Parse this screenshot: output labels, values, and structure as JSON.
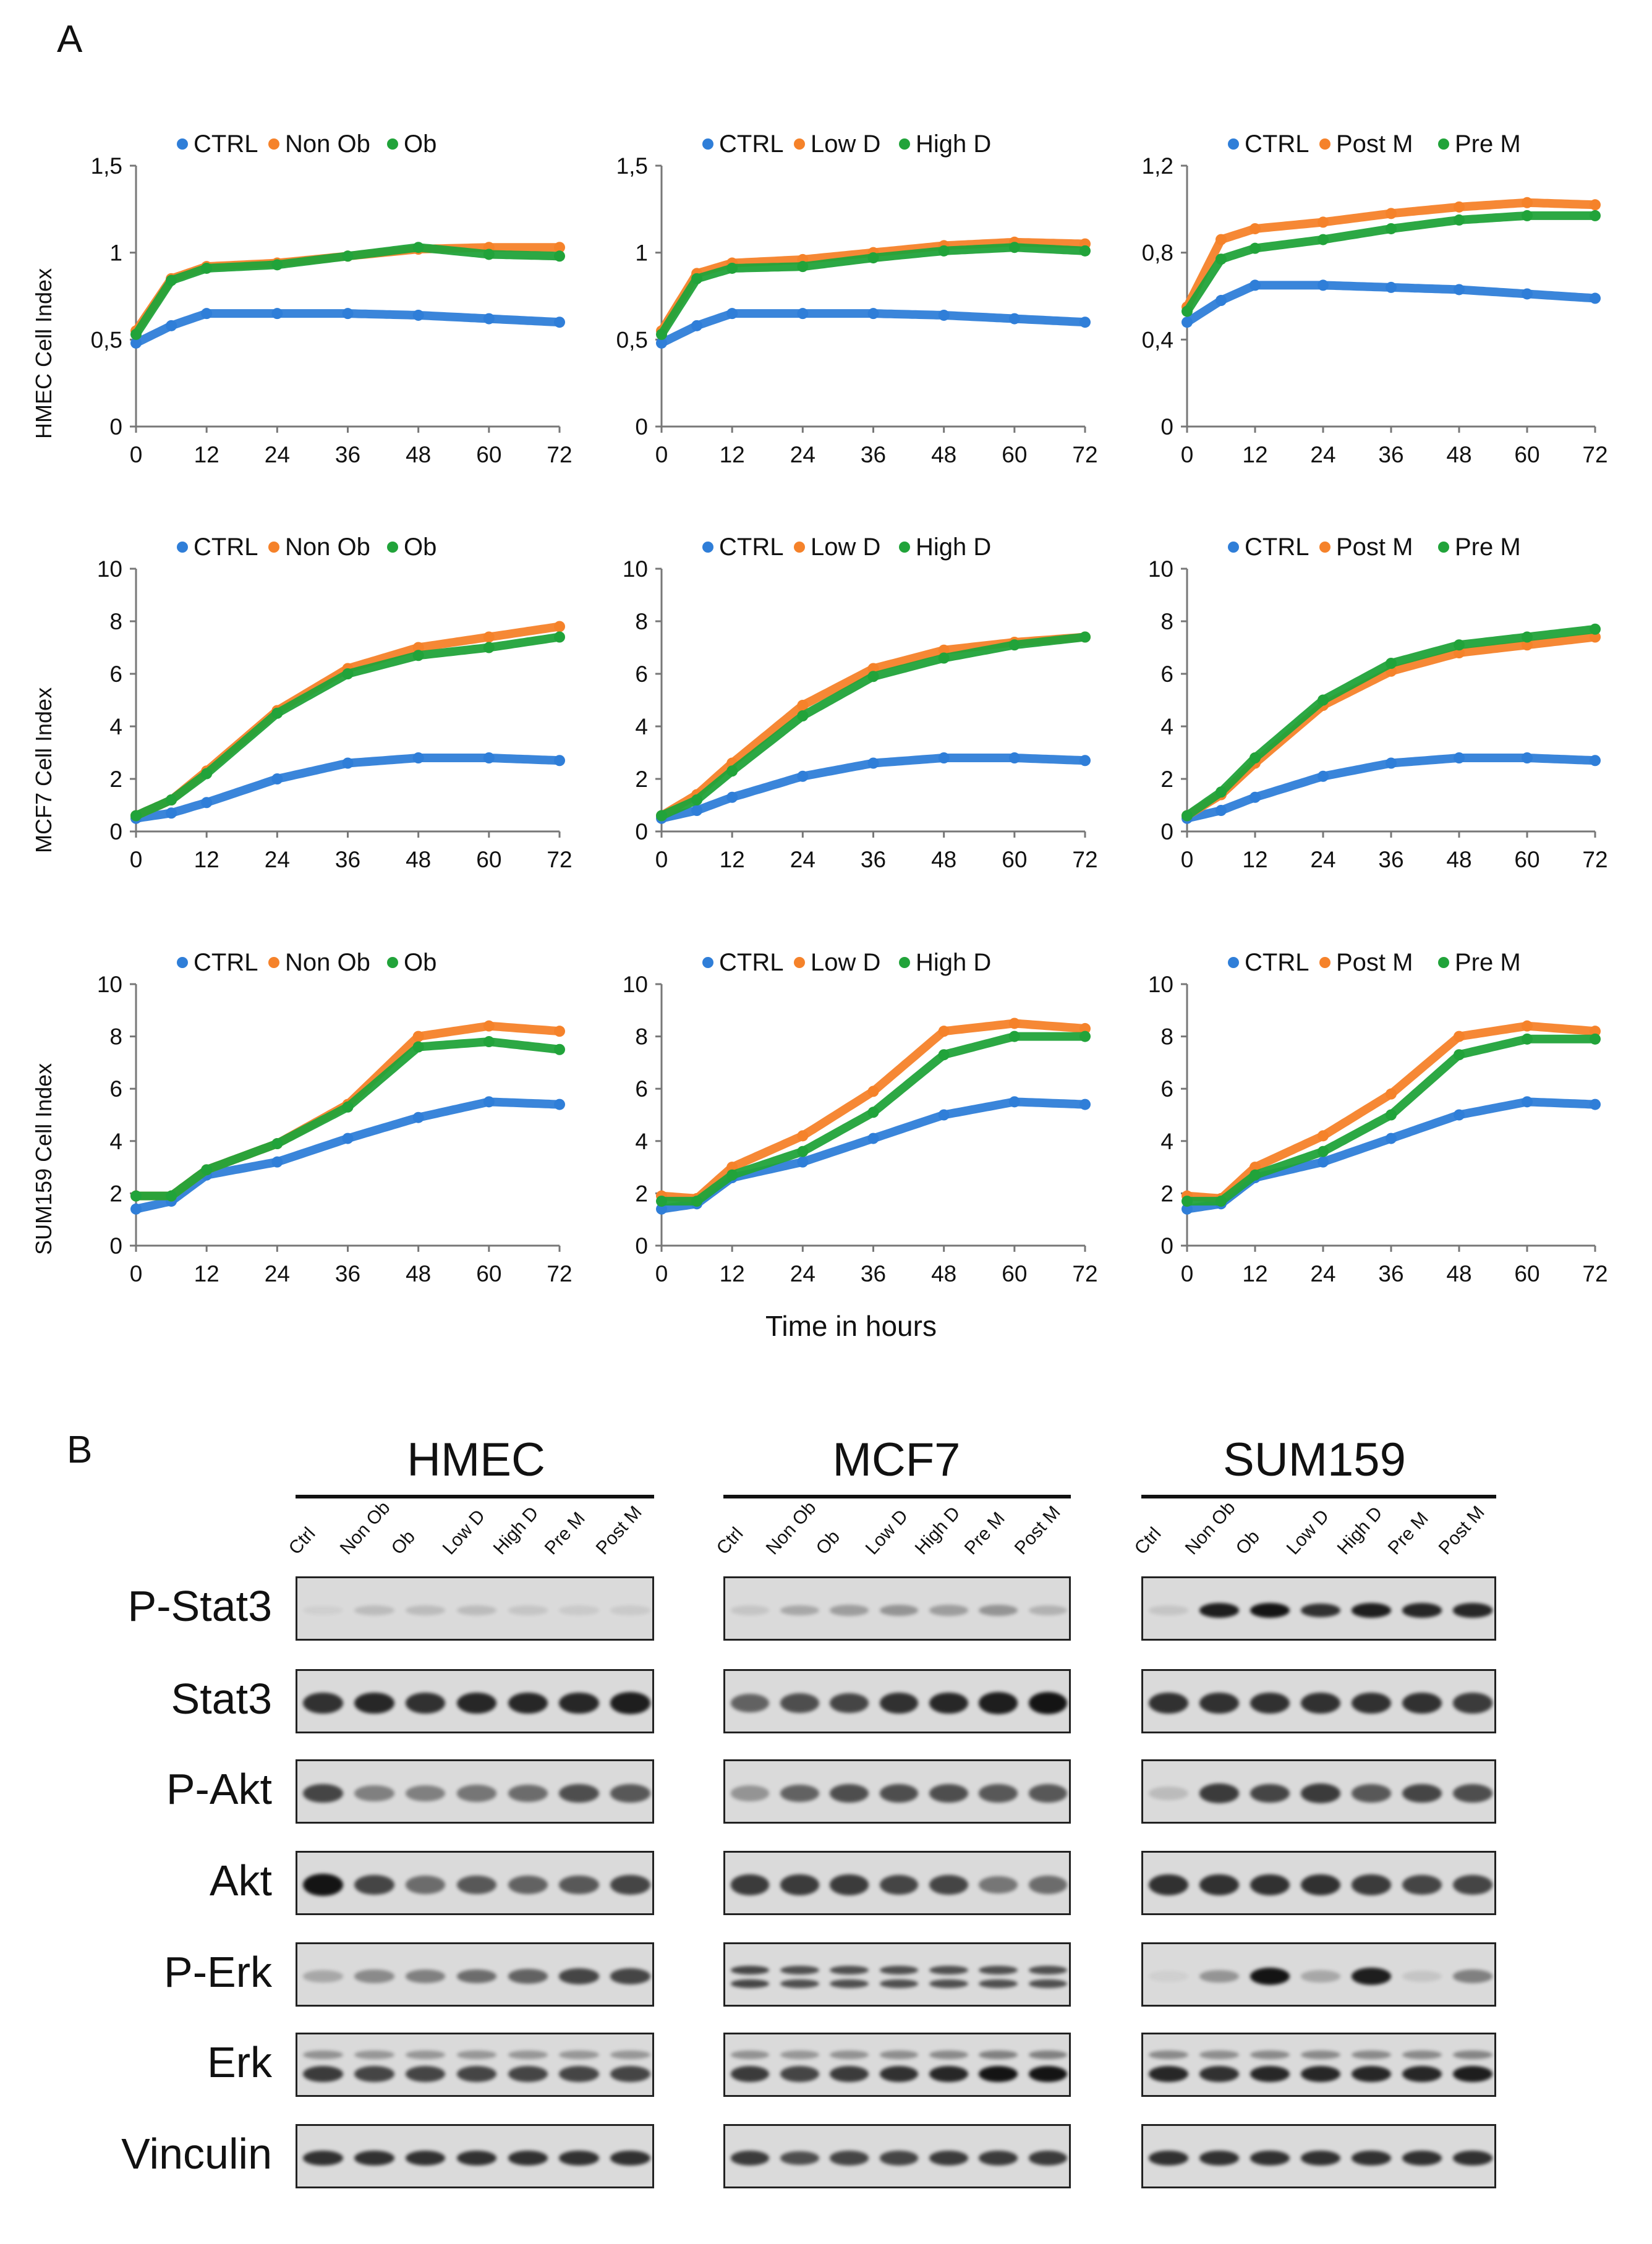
{
  "panel_labels": {
    "a": "A",
    "b": "B"
  },
  "colors": {
    "CTRL": "#2f7ed8",
    "orange": "#f5822a",
    "green": "#21a33a",
    "grey": "#8c8c8c"
  },
  "panel_a": {
    "x_axis_title": "Time in hours",
    "row_labels": [
      "HMEC  Cell Index",
      "MCF7 Cell Index",
      "SUM159  Cell Index"
    ]
  },
  "chart_data": [
    {
      "type": "scatter",
      "row": "HMEC",
      "title": "",
      "xlabel": "",
      "ylabel": "HMEC  Cell Index",
      "x": [
        0,
        6,
        12,
        24,
        36,
        48,
        60,
        72
      ],
      "xticks": [
        "0",
        "12",
        "24",
        "36",
        "48",
        "60",
        "72"
      ],
      "ylim": [
        0,
        1.5
      ],
      "yticks": [
        "0",
        "0,5",
        "1",
        "1,5"
      ],
      "series": [
        {
          "name": "CTRL",
          "color": "#2f7ed8",
          "values": [
            0.48,
            0.58,
            0.65,
            0.65,
            0.65,
            0.64,
            0.62,
            0.6
          ]
        },
        {
          "name": "Non Ob",
          "color": "#f5822a",
          "values": [
            0.55,
            0.85,
            0.92,
            0.94,
            0.98,
            1.02,
            1.03,
            1.03
          ]
        },
        {
          "name": "Ob",
          "color": "#21a33a",
          "values": [
            0.53,
            0.84,
            0.91,
            0.93,
            0.98,
            1.03,
            0.99,
            0.98
          ]
        }
      ]
    },
    {
      "type": "scatter",
      "row": "HMEC",
      "title": "",
      "xlabel": "",
      "ylabel": "",
      "x": [
        0,
        6,
        12,
        24,
        36,
        48,
        60,
        72
      ],
      "xticks": [
        "0",
        "12",
        "24",
        "36",
        "48",
        "60",
        "72"
      ],
      "ylim": [
        0,
        1.5
      ],
      "yticks": [
        "0",
        "0,5",
        "1",
        "1,5"
      ],
      "series": [
        {
          "name": "CTRL",
          "color": "#2f7ed8",
          "values": [
            0.48,
            0.58,
            0.65,
            0.65,
            0.65,
            0.64,
            0.62,
            0.6
          ]
        },
        {
          "name": "Low D",
          "color": "#f5822a",
          "values": [
            0.55,
            0.88,
            0.94,
            0.96,
            1.0,
            1.04,
            1.06,
            1.05
          ]
        },
        {
          "name": "High D",
          "color": "#21a33a",
          "values": [
            0.53,
            0.85,
            0.91,
            0.92,
            0.97,
            1.01,
            1.03,
            1.01
          ]
        }
      ]
    },
    {
      "type": "scatter",
      "row": "HMEC",
      "title": "",
      "xlabel": "",
      "ylabel": "",
      "x": [
        0,
        6,
        12,
        24,
        36,
        48,
        60,
        72
      ],
      "xticks": [
        "0",
        "12",
        "24",
        "36",
        "48",
        "60",
        "72"
      ],
      "ylim": [
        0,
        1.2
      ],
      "yticks": [
        "0",
        "0,4",
        "0,8",
        "1,2"
      ],
      "series": [
        {
          "name": "CTRL",
          "color": "#2f7ed8",
          "values": [
            0.48,
            0.58,
            0.65,
            0.65,
            0.64,
            0.63,
            0.61,
            0.59
          ]
        },
        {
          "name": "Post M",
          "color": "#f5822a",
          "values": [
            0.55,
            0.86,
            0.91,
            0.94,
            0.98,
            1.01,
            1.03,
            1.02
          ]
        },
        {
          "name": "Pre M",
          "color": "#21a33a",
          "values": [
            0.53,
            0.77,
            0.82,
            0.86,
            0.91,
            0.95,
            0.97,
            0.97
          ]
        }
      ]
    },
    {
      "type": "scatter",
      "row": "MCF7",
      "title": "",
      "xlabel": "",
      "ylabel": "MCF7 Cell Index",
      "x": [
        0,
        6,
        12,
        24,
        36,
        48,
        60,
        72
      ],
      "xticks": [
        "0",
        "12",
        "24",
        "36",
        "48",
        "60",
        "72"
      ],
      "ylim": [
        0,
        10
      ],
      "yticks": [
        "0",
        "2",
        "4",
        "6",
        "8",
        "10"
      ],
      "series": [
        {
          "name": "CTRL",
          "color": "#2f7ed8",
          "values": [
            0.5,
            0.7,
            1.1,
            2.0,
            2.6,
            2.8,
            2.8,
            2.7
          ]
        },
        {
          "name": "Non Ob",
          "color": "#f5822a",
          "values": [
            0.6,
            1.2,
            2.3,
            4.6,
            6.2,
            7.0,
            7.4,
            7.8
          ]
        },
        {
          "name": "Ob",
          "color": "#21a33a",
          "values": [
            0.6,
            1.2,
            2.2,
            4.5,
            6.0,
            6.7,
            7.0,
            7.4
          ]
        }
      ]
    },
    {
      "type": "scatter",
      "row": "MCF7",
      "title": "",
      "xlabel": "",
      "ylabel": "",
      "x": [
        0,
        6,
        12,
        24,
        36,
        48,
        60,
        72
      ],
      "xticks": [
        "0",
        "12",
        "24",
        "36",
        "48",
        "60",
        "72"
      ],
      "ylim": [
        0,
        10
      ],
      "yticks": [
        "0",
        "2",
        "4",
        "6",
        "8",
        "10"
      ],
      "series": [
        {
          "name": "CTRL",
          "color": "#2f7ed8",
          "values": [
            0.5,
            0.8,
            1.3,
            2.1,
            2.6,
            2.8,
            2.8,
            2.7
          ]
        },
        {
          "name": "Low D",
          "color": "#f5822a",
          "values": [
            0.6,
            1.4,
            2.6,
            4.8,
            6.2,
            6.9,
            7.2,
            7.4
          ]
        },
        {
          "name": "High D",
          "color": "#21a33a",
          "values": [
            0.6,
            1.2,
            2.3,
            4.4,
            5.9,
            6.6,
            7.1,
            7.4
          ]
        }
      ]
    },
    {
      "type": "scatter",
      "row": "MCF7",
      "title": "",
      "xlabel": "",
      "ylabel": "",
      "x": [
        0,
        6,
        12,
        24,
        36,
        48,
        60,
        72
      ],
      "xticks": [
        "0",
        "12",
        "24",
        "36",
        "48",
        "60",
        "72"
      ],
      "ylim": [
        0,
        10
      ],
      "yticks": [
        "0",
        "2",
        "4",
        "6",
        "8",
        "10"
      ],
      "series": [
        {
          "name": "CTRL",
          "color": "#2f7ed8",
          "values": [
            0.5,
            0.8,
            1.3,
            2.1,
            2.6,
            2.8,
            2.8,
            2.7
          ]
        },
        {
          "name": "Post M",
          "color": "#f5822a",
          "values": [
            0.6,
            1.4,
            2.6,
            4.8,
            6.1,
            6.8,
            7.1,
            7.4
          ]
        },
        {
          "name": "Pre M",
          "color": "#21a33a",
          "values": [
            0.6,
            1.5,
            2.8,
            5.0,
            6.4,
            7.1,
            7.4,
            7.7
          ]
        }
      ]
    },
    {
      "type": "scatter",
      "row": "SUM159",
      "title": "",
      "xlabel": "",
      "ylabel": "SUM159  Cell Index",
      "x": [
        0,
        6,
        12,
        24,
        36,
        48,
        60,
        72
      ],
      "xticks": [
        "0",
        "12",
        "24",
        "36",
        "48",
        "60",
        "72"
      ],
      "ylim": [
        0,
        10
      ],
      "yticks": [
        "0",
        "2",
        "4",
        "6",
        "8",
        "10"
      ],
      "series": [
        {
          "name": "CTRL",
          "color": "#2f7ed8",
          "values": [
            1.4,
            1.7,
            2.7,
            3.2,
            4.1,
            4.9,
            5.5,
            5.4
          ]
        },
        {
          "name": "Non Ob",
          "color": "#f5822a",
          "values": [
            1.9,
            1.9,
            2.9,
            3.9,
            5.4,
            8.0,
            8.4,
            8.2
          ]
        },
        {
          "name": "Ob",
          "color": "#21a33a",
          "values": [
            1.9,
            1.9,
            2.9,
            3.9,
            5.3,
            7.6,
            7.8,
            7.5
          ]
        }
      ]
    },
    {
      "type": "scatter",
      "row": "SUM159",
      "title": "",
      "xlabel": "",
      "ylabel": "",
      "x": [
        0,
        6,
        12,
        24,
        36,
        48,
        60,
        72
      ],
      "xticks": [
        "0",
        "12",
        "24",
        "36",
        "48",
        "60",
        "72"
      ],
      "ylim": [
        0,
        10
      ],
      "yticks": [
        "0",
        "2",
        "4",
        "6",
        "8",
        "10"
      ],
      "series": [
        {
          "name": "CTRL",
          "color": "#2f7ed8",
          "values": [
            1.4,
            1.6,
            2.6,
            3.2,
            4.1,
            5.0,
            5.5,
            5.4
          ]
        },
        {
          "name": "Low D",
          "color": "#f5822a",
          "values": [
            1.9,
            1.8,
            3.0,
            4.2,
            5.9,
            8.2,
            8.5,
            8.3
          ]
        },
        {
          "name": "High D",
          "color": "#21a33a",
          "values": [
            1.7,
            1.7,
            2.7,
            3.6,
            5.1,
            7.3,
            8.0,
            8.0
          ]
        }
      ]
    },
    {
      "type": "scatter",
      "row": "SUM159",
      "title": "",
      "xlabel": "",
      "ylabel": "",
      "x": [
        0,
        6,
        12,
        24,
        36,
        48,
        60,
        72
      ],
      "xticks": [
        "0",
        "12",
        "24",
        "36",
        "48",
        "60",
        "72"
      ],
      "ylim": [
        0,
        10
      ],
      "yticks": [
        "0",
        "2",
        "4",
        "6",
        "8",
        "10"
      ],
      "series": [
        {
          "name": "CTRL",
          "color": "#2f7ed8",
          "values": [
            1.4,
            1.6,
            2.6,
            3.2,
            4.1,
            5.0,
            5.5,
            5.4
          ]
        },
        {
          "name": "Post M",
          "color": "#f5822a",
          "values": [
            1.9,
            1.8,
            3.0,
            4.2,
            5.8,
            8.0,
            8.4,
            8.2
          ]
        },
        {
          "name": "Pre M",
          "color": "#21a33a",
          "values": [
            1.7,
            1.7,
            2.7,
            3.6,
            5.0,
            7.3,
            7.9,
            7.9
          ]
        }
      ]
    }
  ],
  "panel_b": {
    "cell_lines": [
      "HMEC",
      "MCF7",
      "SUM159"
    ],
    "lanes": [
      "Ctrl",
      "Non Ob",
      "Ob",
      "Low D",
      "High D",
      "Pre M",
      "Post M"
    ],
    "proteins": [
      "P-Stat3",
      "Stat3",
      "P-Akt",
      "Akt",
      "P-Erk",
      "Erk",
      "Vinculin"
    ],
    "band_intensity": [
      [
        [
          0.05,
          0.15,
          0.15,
          0.15,
          0.1,
          0.08,
          0.08
        ],
        [
          0.1,
          0.25,
          0.3,
          0.35,
          0.3,
          0.35,
          0.2
        ],
        [
          0.1,
          0.95,
          1.0,
          0.85,
          0.95,
          0.9,
          0.9
        ]
      ],
      [
        [
          0.85,
          0.9,
          0.85,
          0.9,
          0.9,
          0.9,
          0.95
        ],
        [
          0.6,
          0.7,
          0.75,
          0.85,
          0.9,
          0.95,
          1.0
        ],
        [
          0.85,
          0.85,
          0.85,
          0.85,
          0.85,
          0.85,
          0.8
        ]
      ],
      [
        [
          0.75,
          0.45,
          0.45,
          0.5,
          0.55,
          0.7,
          0.65
        ],
        [
          0.35,
          0.6,
          0.7,
          0.7,
          0.7,
          0.65,
          0.65
        ],
        [
          0.15,
          0.8,
          0.75,
          0.8,
          0.65,
          0.75,
          0.7
        ]
      ],
      [
        [
          1.0,
          0.75,
          0.55,
          0.65,
          0.6,
          0.65,
          0.75
        ],
        [
          0.8,
          0.8,
          0.8,
          0.75,
          0.75,
          0.5,
          0.55
        ],
        [
          0.85,
          0.85,
          0.85,
          0.85,
          0.8,
          0.75,
          0.75
        ]
      ],
      [
        [
          0.25,
          0.4,
          0.45,
          0.55,
          0.6,
          0.75,
          0.75
        ],
        [
          0.75,
          0.7,
          0.7,
          0.7,
          0.7,
          0.7,
          0.7
        ],
        [
          0.05,
          0.35,
          1.0,
          0.25,
          0.95,
          0.1,
          0.45
        ]
      ],
      [
        [
          0.8,
          0.75,
          0.75,
          0.75,
          0.75,
          0.75,
          0.75
        ],
        [
          0.8,
          0.75,
          0.8,
          0.85,
          0.9,
          1.0,
          1.0
        ],
        [
          0.9,
          0.85,
          0.9,
          0.9,
          0.9,
          0.9,
          0.95
        ]
      ],
      [
        [
          0.85,
          0.85,
          0.85,
          0.85,
          0.85,
          0.85,
          0.85
        ],
        [
          0.8,
          0.7,
          0.75,
          0.75,
          0.8,
          0.8,
          0.8
        ],
        [
          0.85,
          0.85,
          0.85,
          0.85,
          0.85,
          0.85,
          0.85
        ]
      ]
    ]
  }
}
